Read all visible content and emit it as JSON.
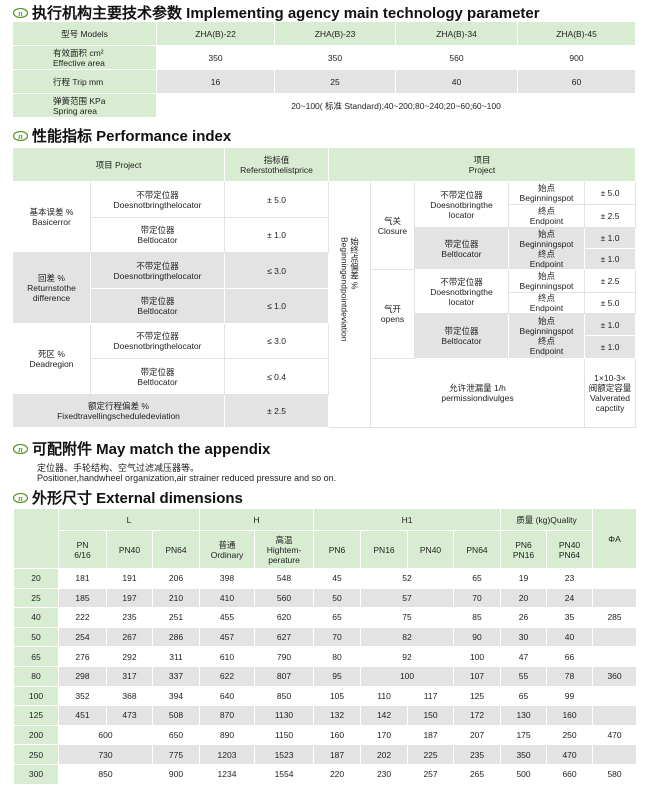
{
  "sections": {
    "s1": "执行机构主要技术参数 Implementing agency main technology parameter",
    "s2": "性能指标 Performance index",
    "s3": "可配附件 May match the appendix",
    "s4": "外形尺寸 External dimensions"
  },
  "logo_color": "#5a9a2a",
  "spec": {
    "models_label": "型号 Models",
    "models": [
      "ZHA(B)-22",
      "ZHA(B)-23",
      "ZHA(B)-34",
      "ZHA(B)-45"
    ],
    "area_label_cn": "有效面积 cm²",
    "area_label_en": "Effective area",
    "area": [
      "350",
      "350",
      "560",
      "900"
    ],
    "trip_label": "行程 Trip mm",
    "trip": [
      "16",
      "25",
      "40",
      "60"
    ],
    "spring_label_cn": "弹簧范围 KPa",
    "spring_label_en": "Spring area",
    "spring": "20~100( 标准 Standard);40~200;80~240;20~60;60~100"
  },
  "perf": {
    "h_project": "项目 Project",
    "h_ref_cn": "指标值",
    "h_ref_en": "Referstothelistprice",
    "h_project2_cn": "项目",
    "h_project2_en": "Project",
    "nobring_cn": "不带定位器",
    "nobring_en": "Doesnotbringthelocator",
    "nobring_en1": "Doesnotbringthe",
    "nobring_en2": "locator",
    "belt_cn": "带定位器",
    "belt_en": "Beltlocator",
    "basic_cn": "基本误差 %",
    "basic_en": "Basicerror",
    "return_cn": "回差 %",
    "return_en": "Returnstothe difference",
    "dead_cn": "死区 %",
    "dead_en": "Deadregion",
    "fixed_cn": "额定行程偏差 %",
    "fixed_en": "Fixedtravellingscheduledeviation",
    "values": [
      "± 5.0",
      "± 1.0",
      "≤ 3.0",
      "≤ 1.0",
      "≤ 3.0",
      "≤ 0.4",
      "± 2.5"
    ],
    "dev_cn": "始终点偏差 %",
    "dev_en": "Beginningendpointdeviation",
    "closure_cn": "气关",
    "closure_en": "Closure",
    "opens_cn": "气开",
    "opens_en": "opens",
    "spot_cn": "始点",
    "spot_en": "Beginningspot",
    "end_cn": "终点",
    "end_en": "Endpoint",
    "closure_vals": [
      "± 5.0",
      "± 2.5",
      "± 1.0",
      "± 1.0"
    ],
    "opens_vals": [
      "± 2.5",
      "± 5.0",
      "± 1.0",
      "± 1.0"
    ],
    "allow_cn": "允许泄漏量 1/h",
    "allow_en": "permissiondivulges",
    "cap_1": "1×10-3×",
    "cap_cn": "阀额定容量",
    "cap_en1": "Valverated",
    "cap_en2": "capctity"
  },
  "appendix": {
    "cn": "定位器、手轮结构、空气过滤减压器等。",
    "en": "Positioner,handwheel organization,air strainer reduced pressure and so on."
  },
  "dims": {
    "h_L": "L",
    "h_H": "H",
    "h_H1": "H1",
    "h_Q": "质量 (kg)Quality",
    "h_phi": "ΦA",
    "sub": [
      "PN 6/16",
      "PN40",
      "PN64",
      "普通 Ordinary",
      "高温 Hightem-perature",
      "PN6",
      "PN16",
      "PN40",
      "PN64",
      "PN6 PN16",
      "PN40 PN64"
    ],
    "rows": [
      {
        "dn": "20",
        "L": [
          "181",
          "191",
          "206"
        ],
        "H": [
          "398",
          "548"
        ],
        "H1": [
          "45",
          "52",
          "65"
        ],
        "Q": [
          "19",
          "23"
        ],
        "phi": ""
      },
      {
        "dn": "25",
        "L": [
          "185",
          "197",
          "210"
        ],
        "H": [
          "410",
          "560"
        ],
        "H1": [
          "50",
          "57",
          "70"
        ],
        "Q": [
          "20",
          "24"
        ],
        "phi": ""
      },
      {
        "dn": "40",
        "L": [
          "222",
          "235",
          "251"
        ],
        "H": [
          "455",
          "620"
        ],
        "H1": [
          "65",
          "75",
          "85"
        ],
        "Q": [
          "26",
          "35"
        ],
        "phi": "285"
      },
      {
        "dn": "50",
        "L": [
          "254",
          "267",
          "286"
        ],
        "H": [
          "457",
          "627"
        ],
        "H1": [
          "70",
          "82",
          "90"
        ],
        "Q": [
          "30",
          "40"
        ],
        "phi": ""
      },
      {
        "dn": "65",
        "L": [
          "276",
          "292",
          "311"
        ],
        "H": [
          "610",
          "790"
        ],
        "H1": [
          "80",
          "92",
          "100"
        ],
        "Q": [
          "47",
          "66"
        ],
        "phi": ""
      },
      {
        "dn": "80",
        "L": [
          "298",
          "317",
          "337"
        ],
        "H": [
          "622",
          "807"
        ],
        "H1": [
          "95",
          "100",
          "107"
        ],
        "Q": [
          "55",
          "78"
        ],
        "phi": "360"
      },
      {
        "dn": "100",
        "L": [
          "352",
          "368",
          "394"
        ],
        "H": [
          "640",
          "850"
        ],
        "H1": [
          "105",
          "110",
          "117",
          "125"
        ],
        "Q": [
          "65",
          "99"
        ],
        "phi": ""
      },
      {
        "dn": "125",
        "L": [
          "451",
          "473",
          "508"
        ],
        "H": [
          "870",
          "1130"
        ],
        "H1": [
          "132",
          "142",
          "150",
          "172"
        ],
        "Q": [
          "130",
          "160"
        ],
        "phi": ""
      },
      {
        "dn": "200",
        "L": [
          "600",
          "650"
        ],
        "H": [
          "890",
          "1150"
        ],
        "H1": [
          "160",
          "170",
          "187",
          "207"
        ],
        "Q": [
          "175",
          "250"
        ],
        "phi": "470"
      },
      {
        "dn": "250",
        "L": [
          "730",
          "775"
        ],
        "H": [
          "1203",
          "1523"
        ],
        "H1": [
          "187",
          "202",
          "225",
          "235"
        ],
        "Q": [
          "350",
          "470"
        ],
        "phi": ""
      },
      {
        "dn": "300",
        "L": [
          "850",
          "900"
        ],
        "H": [
          "1234",
          "1554"
        ],
        "H1": [
          "220",
          "230",
          "257",
          "265"
        ],
        "Q": [
          "500",
          "660"
        ],
        "phi": "580"
      }
    ]
  }
}
